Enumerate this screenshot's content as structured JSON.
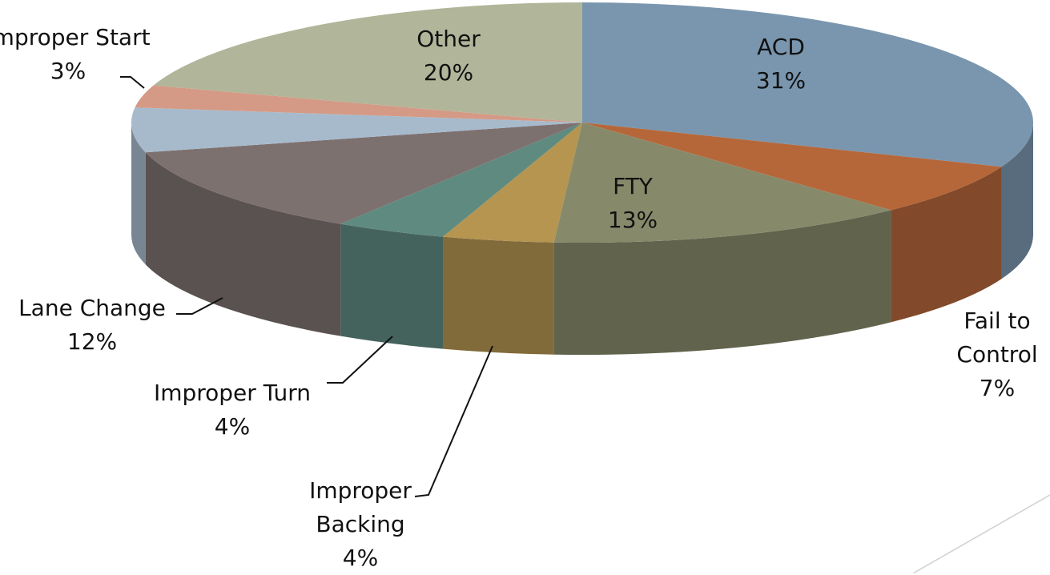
{
  "chart_data": {
    "type": "pie",
    "categories": [
      "ACD",
      "Fail to Control",
      "FTY",
      "Improper Backing",
      "Improper Turn",
      "Lane Change",
      null,
      "Improper Start",
      "Other"
    ],
    "values": [
      31,
      7,
      13,
      4,
      4,
      12,
      6,
      3,
      20
    ],
    "value_labels": [
      "31%",
      "7%",
      "13%",
      "4%",
      "4%",
      "12%",
      null,
      "3%",
      "20%"
    ],
    "colors": [
      "#7a96ae",
      "#b5673a",
      "#878a6a",
      "#b59550",
      "#5f8a80",
      "#7d7170",
      "#a7bacc",
      "#d49a86",
      "#b1b599"
    ]
  }
}
